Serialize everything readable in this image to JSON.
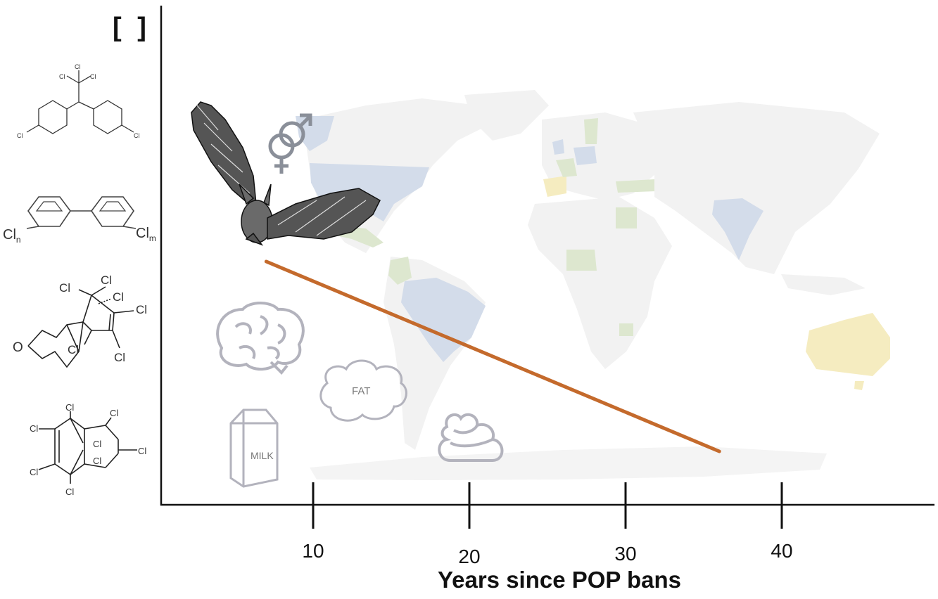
{
  "chart_data": {
    "type": "line",
    "ylabel": "[ ]",
    "xlabel": "Years since POP bans",
    "x_ticks": [
      10,
      20,
      30,
      40
    ],
    "series": [
      {
        "x": [
          7,
          36
        ],
        "y": [
          1.0,
          0.0
        ]
      }
    ]
  },
  "icons": {
    "milk_label": "MILK",
    "fat_label": "FAT",
    "chem_cl": "Cl",
    "chem_cln": "Cl",
    "chem_n": "n",
    "chem_clm": "Cl",
    "chem_m": "m",
    "chem_o": "O"
  },
  "colors": {
    "trend_line": "#c46a2c",
    "map_land": "#f2f2f2",
    "map_blue": "#d3dcea",
    "map_green": "#dde7cf",
    "map_yellow": "#f5ecc0",
    "icon_gray": "#b3b3bd"
  }
}
